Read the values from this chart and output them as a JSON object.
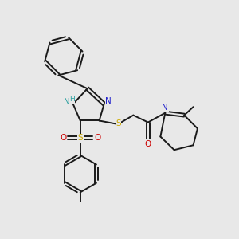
{
  "bg_color": "#e8e8e8",
  "bond_color": "#1a1a1a",
  "figsize": [
    3.0,
    3.0
  ],
  "dpi": 100,
  "lw": 1.4,
  "atom_colors": {
    "N": "#2222cc",
    "NH": "#2ca0a0",
    "S": "#ccaa00",
    "O": "#cc0000",
    "C": "#1a1a1a"
  }
}
